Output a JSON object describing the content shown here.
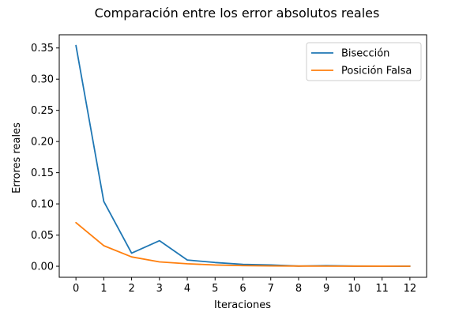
{
  "chart_data": {
    "type": "line",
    "title": "Comparación entre los error absolutos reales",
    "xlabel": "Iteraciones",
    "ylabel": "Errores reales",
    "x": [
      0,
      1,
      2,
      3,
      4,
      5,
      6,
      7,
      8,
      9,
      10,
      11,
      12
    ],
    "xticks": [
      0,
      1,
      2,
      3,
      4,
      5,
      6,
      7,
      8,
      9,
      10,
      11,
      12
    ],
    "yticks": [
      0.0,
      0.05,
      0.1,
      0.15,
      0.2,
      0.25,
      0.3,
      0.35
    ],
    "ytick_labels": [
      "0.00",
      "0.05",
      "0.10",
      "0.15",
      "0.20",
      "0.25",
      "0.30",
      "0.35"
    ],
    "xlim": [
      -0.6,
      12.6
    ],
    "ylim": [
      -0.0177,
      0.3712
    ],
    "grid": false,
    "legend_position": "upper right",
    "series": [
      {
        "name": "Bisección",
        "color": "#1f77b4",
        "values": [
          0.354,
          0.104,
          0.021,
          0.041,
          0.01,
          0.006,
          0.003,
          0.002,
          0.0003,
          0.001,
          0.0003,
          0.0002,
          0.0001
        ]
      },
      {
        "name": "Posición Falsa",
        "color": "#ff7f0e",
        "values": [
          0.07,
          0.033,
          0.015,
          0.007,
          0.004,
          0.002,
          0.001,
          0.0005,
          0.0003,
          0.0002,
          0.0001,
          0.0001,
          5e-05
        ]
      }
    ]
  }
}
